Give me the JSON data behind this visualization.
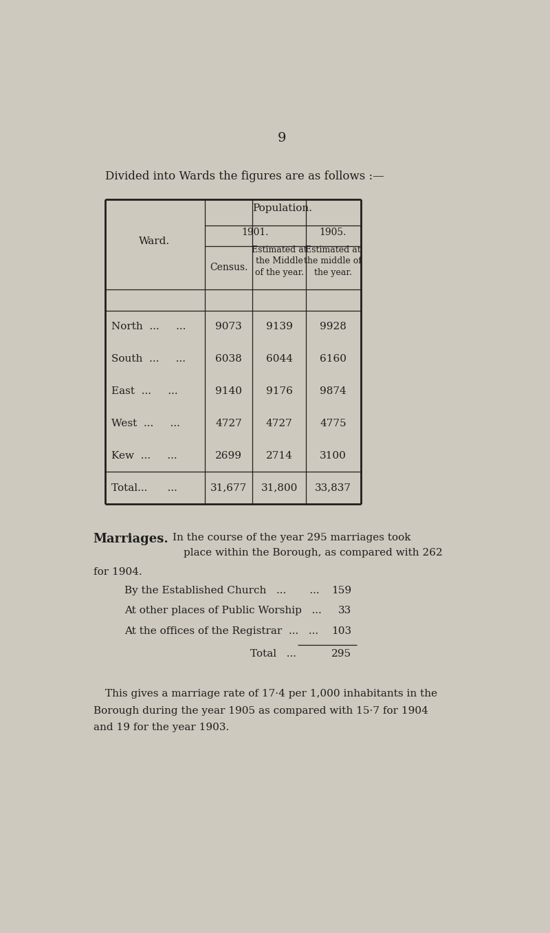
{
  "page_number": "9",
  "bg_color": "#cdc9be",
  "text_color": "#1e1e1e",
  "intro_text": "Divided into Wards the figures are as follows :—",
  "table": {
    "header_population": "Population.",
    "header_1901": "1901.",
    "header_1905": "1905.",
    "subheader_census": "Census.",
    "subheader_1901": "Estimated at\nthe Middle\nof the year.",
    "subheader_1905": "Estimated at\nthe middle of\nthe year.",
    "col_ward": "Ward.",
    "wards": [
      "North",
      "South",
      "East",
      "West",
      "Kew"
    ],
    "ward_dots": [
      "...    ...",
      "...    ...",
      "...    ...",
      "...    ...",
      "...    ..."
    ],
    "census": [
      "9073",
      "6038",
      "9140",
      "4727",
      "2699"
    ],
    "est_1901": [
      "9139",
      "6044",
      "9176",
      "4727",
      "2714"
    ],
    "est_1905": [
      "9928",
      "6160",
      "9874",
      "4775",
      "3100"
    ],
    "total_label": "Total...",
    "total_dots": "...",
    "total_census": "31,677",
    "total_1901": "31,800",
    "total_1905": "33,837"
  },
  "marriages_heading": "Marriages.",
  "marriages_line1a": "In the course of the year 295 marriages took",
  "marriages_line1b": "place within the Borough, as compared with 262",
  "marriages_line1c": "for 1904.",
  "marriages_line2_label": "By the Established Church",
  "marriages_line2_dots": "...       ...",
  "marriages_line2_val": "159",
  "marriages_line3_label": "At other places of Public Worship",
  "marriages_line3_dots": "...",
  "marriages_line3_val": "33",
  "marriages_line4_label": "At the offices of the Registrar  ...",
  "marriages_line4_dots": "...",
  "marriages_line4_val": "103",
  "marriages_total_label": "Total",
  "marriages_total_dots": "...",
  "marriages_total_val": "295",
  "marriages_para2_line1": "This gives a marriage rate of 17·4 per 1,000 inhabitants in the",
  "marriages_para2_line2": "Borough during the year 1905 as compared with 15·7 for 1904",
  "marriages_para2_line3": "and 19 for the year 1903."
}
